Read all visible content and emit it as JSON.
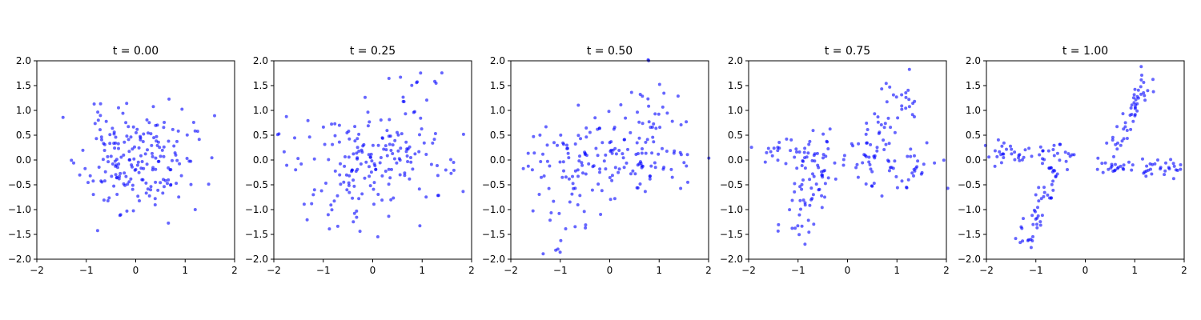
{
  "chart_data": [
    {
      "type": "scatter",
      "title": "t = 0.00",
      "xlim": [
        -2,
        2
      ],
      "ylim": [
        -2,
        2
      ],
      "xticks": [
        "−2",
        "−1",
        "0",
        "1",
        "2"
      ],
      "yticks": [
        "−2.0",
        "−1.5",
        "−1.0",
        "−0.5",
        "0.0",
        "0.5",
        "1.0",
        "1.5",
        "2.0"
      ],
      "color": "#0000ff",
      "grid": false,
      "seed": 11,
      "mode": "blob"
    },
    {
      "type": "scatter",
      "title": "t = 0.25",
      "xlim": [
        -2,
        2
      ],
      "ylim": [
        -2,
        2
      ],
      "xticks": [
        "−2",
        "−1",
        "0",
        "1",
        "2"
      ],
      "yticks": [
        "−2.0",
        "−1.5",
        "−1.0",
        "−0.5",
        "0.0",
        "0.5",
        "1.0",
        "1.5",
        "2.0"
      ],
      "color": "#0000ff",
      "grid": false,
      "seed": 23,
      "mode": "arms",
      "t": 0.25
    },
    {
      "type": "scatter",
      "title": "t = 0.50",
      "xlim": [
        -2,
        2
      ],
      "ylim": [
        -2,
        2
      ],
      "xticks": [
        "−2",
        "−1",
        "0",
        "1",
        "2"
      ],
      "yticks": [
        "−2.0",
        "−1.5",
        "−1.0",
        "−0.5",
        "0.0",
        "0.5",
        "1.0",
        "1.5",
        "2.0"
      ],
      "color": "#0000ff",
      "grid": false,
      "seed": 37,
      "mode": "arms",
      "t": 0.5
    },
    {
      "type": "scatter",
      "title": "t = 0.75",
      "xlim": [
        -2,
        2
      ],
      "ylim": [
        -2,
        2
      ],
      "xticks": [
        "−2",
        "−1",
        "0",
        "1",
        "2"
      ],
      "yticks": [
        "−2.0",
        "−1.5",
        "−1.0",
        "−0.5",
        "0.0",
        "0.5",
        "1.0",
        "1.5",
        "2.0"
      ],
      "color": "#0000ff",
      "grid": false,
      "seed": 41,
      "mode": "arms",
      "t": 0.75
    },
    {
      "type": "scatter",
      "title": "t = 1.00",
      "xlim": [
        -2,
        2
      ],
      "ylim": [
        -2,
        2
      ],
      "xticks": [
        "−2",
        "−1",
        "0",
        "1",
        "2"
      ],
      "yticks": [
        "−2.0",
        "−1.5",
        "−1.0",
        "−0.5",
        "0.0",
        "0.5",
        "1.0",
        "1.5",
        "2.0"
      ],
      "color": "#0000ff",
      "grid": false,
      "seed": 53,
      "mode": "arms",
      "t": 1.0
    }
  ]
}
